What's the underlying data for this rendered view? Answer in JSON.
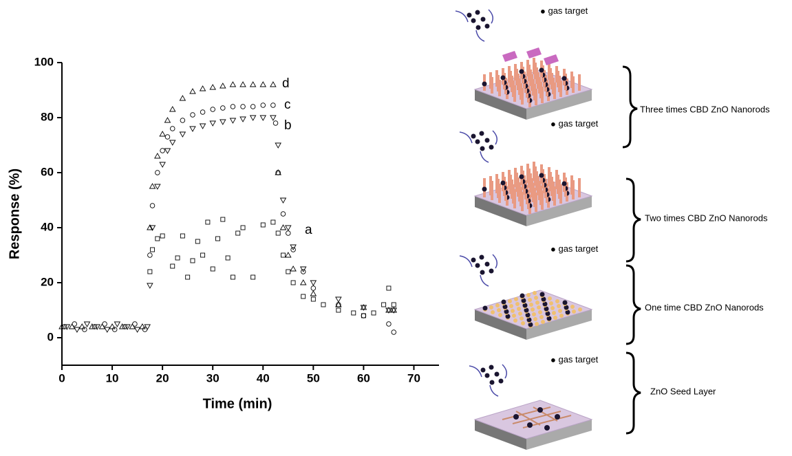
{
  "chart_data": {
    "type": "scatter",
    "x_label": "Time (min)",
    "y_label": "Response (%)",
    "xlim": [
      0,
      75
    ],
    "ylim": [
      -10,
      100
    ],
    "xticks": [
      0,
      10,
      20,
      30,
      40,
      50,
      60,
      70
    ],
    "yticks": [
      0,
      20,
      40,
      60,
      80,
      100
    ],
    "series": [
      {
        "name": "a",
        "marker": "square",
        "color": "#000000",
        "x": [
          17.5,
          18,
          19,
          20,
          22,
          23,
          24,
          25,
          26,
          27,
          28,
          29,
          30,
          31,
          32,
          33,
          34,
          35,
          36,
          38,
          40,
          42,
          43,
          44,
          45,
          46,
          48,
          50,
          52,
          55,
          58,
          60,
          62,
          64,
          65,
          66
        ],
        "values": [
          24,
          32,
          36,
          37,
          26,
          29,
          37,
          22,
          28,
          35,
          30,
          42,
          25,
          36,
          43,
          29,
          22,
          38,
          40,
          22,
          41,
          42,
          38,
          30,
          24,
          20,
          15,
          14,
          12,
          10,
          9,
          8,
          9,
          12,
          18,
          12
        ]
      },
      {
        "name": "b",
        "marker": "triangle-down",
        "color": "#000000",
        "x": [
          1,
          3,
          5,
          7,
          9,
          11,
          13,
          15,
          17,
          17.5,
          18,
          19,
          20,
          21,
          22,
          24,
          26,
          28,
          30,
          32,
          34,
          36,
          38,
          40,
          42,
          43,
          44,
          45,
          46,
          48,
          50,
          55,
          60,
          65,
          66
        ],
        "values": [
          4,
          3,
          5,
          4,
          3,
          5,
          4,
          3,
          4,
          19,
          40,
          55,
          63,
          68,
          71,
          74,
          76,
          77,
          78,
          78.5,
          79,
          79.5,
          80,
          80,
          80,
          70,
          50,
          40,
          33,
          25,
          20,
          14,
          11,
          10,
          10
        ]
      },
      {
        "name": "c",
        "marker": "circle",
        "color": "#000000",
        "x": [
          0.5,
          2.5,
          4.5,
          6.5,
          8.5,
          10.5,
          12.5,
          14.5,
          16.5,
          17.5,
          18,
          19,
          20,
          21,
          22,
          24,
          26,
          28,
          30,
          32,
          34,
          36,
          38,
          40,
          42,
          42.5,
          43,
          44,
          45,
          46,
          48,
          50,
          55,
          60,
          65,
          66
        ],
        "values": [
          4,
          5,
          3,
          4,
          5,
          3,
          4,
          5,
          3,
          30,
          48,
          60,
          68,
          73,
          76,
          79,
          81,
          82,
          83,
          83.5,
          84,
          84,
          84,
          84.5,
          84.5,
          78,
          60,
          45,
          38,
          32,
          24,
          18,
          12,
          8,
          5,
          2
        ]
      },
      {
        "name": "d",
        "marker": "triangle-up",
        "color": "#000000",
        "x": [
          0,
          2,
          4,
          6,
          8,
          10,
          12,
          14,
          16,
          17.5,
          18,
          19,
          20,
          21,
          22,
          24,
          26,
          28,
          30,
          32,
          34,
          36,
          38,
          40,
          42,
          43,
          44,
          45,
          46,
          48,
          50,
          55,
          60,
          65,
          66
        ],
        "values": [
          4,
          4,
          4,
          4,
          4,
          4,
          4,
          4,
          4,
          40,
          55,
          66,
          74,
          79,
          83,
          87,
          89.5,
          90.5,
          91,
          91.5,
          92,
          92,
          92,
          92,
          92,
          60,
          40,
          30,
          25,
          20,
          16,
          12,
          11,
          10,
          10
        ]
      }
    ]
  },
  "diagram": {
    "layers": [
      {
        "label": "Three times CBD  ZnO Nanorods",
        "target": "gas target"
      },
      {
        "label": "Two times CBD  ZnO Nanorods",
        "target": "gas target"
      },
      {
        "label": "One time  CBD  ZnO Nanorods",
        "target": "gas target"
      },
      {
        "label": "ZnO Seed Layer",
        "target": "gas target"
      }
    ]
  }
}
